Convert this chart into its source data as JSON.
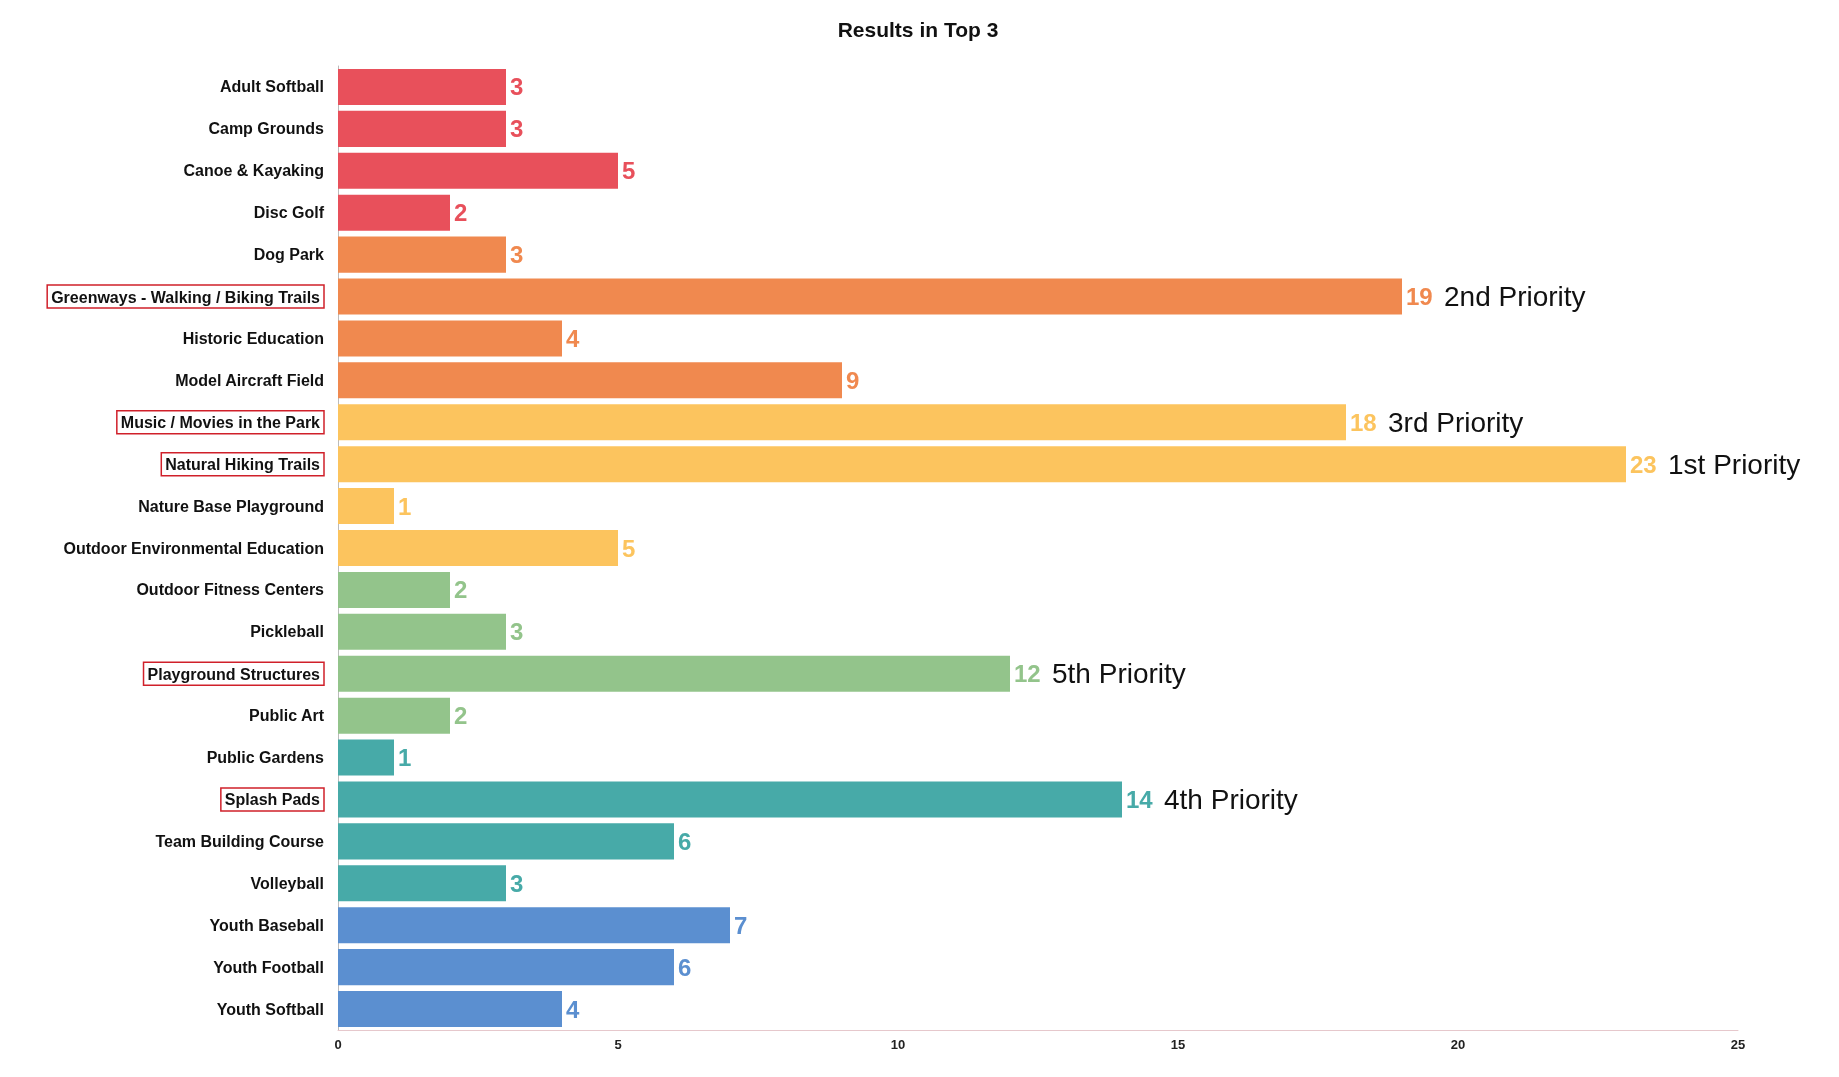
{
  "chart_data": {
    "type": "bar",
    "orientation": "horizontal",
    "title": "Results in Top 3",
    "categories": [
      "Adult Softball",
      "Camp Grounds",
      "Canoe & Kayaking",
      "Disc Golf",
      "Dog Park",
      "Greenways - Walking / Biking Trails",
      "Historic Education",
      "Model Aircraft Field",
      "Music / Movies in the Park",
      "Natural Hiking Trails",
      "Nature Base Playground",
      "Outdoor Environmental Education",
      "Outdoor Fitness Centers",
      "Pickleball",
      "Playground Structures",
      "Public Art",
      "Public Gardens",
      "Splash Pads",
      "Team Building Course",
      "Volleyball",
      "Youth Baseball",
      "Youth Football",
      "Youth Softball"
    ],
    "values": [
      3,
      3,
      5,
      2,
      3,
      19,
      4,
      9,
      18,
      23,
      1,
      5,
      2,
      3,
      12,
      2,
      1,
      14,
      6,
      3,
      7,
      6,
      4
    ],
    "colors": [
      "#e8505b",
      "#e8505b",
      "#e8505b",
      "#e8505b",
      "#f0894f",
      "#f0894f",
      "#f0894f",
      "#f0894f",
      "#fcc45e",
      "#fcc45e",
      "#fcc45e",
      "#fcc45e",
      "#93c48b",
      "#93c48b",
      "#93c48b",
      "#93c48b",
      "#47aaa8",
      "#47aaa8",
      "#47aaa8",
      "#47aaa8",
      "#5b8fd0",
      "#5b8fd0",
      "#5b8fd0"
    ],
    "xlim": [
      0,
      25
    ],
    "xticks": [
      0,
      5,
      10,
      15,
      20,
      25
    ],
    "data_labels": true,
    "grid": false,
    "annotations": [
      {
        "text": "2nd Priority",
        "x": 19,
        "y": "Greenways - Walking / Biking Trails"
      },
      {
        "text": "3rd Priority",
        "x": 18,
        "y": "Music / Movies in the Park"
      },
      {
        "text": "1st Priority",
        "x": 23,
        "y": "Natural Hiking Trails"
      },
      {
        "text": "5th Priority",
        "x": 12,
        "y": "Playground Structures"
      },
      {
        "text": "4th Priority",
        "x": 14,
        "y": "Splash Pads"
      }
    ]
  }
}
